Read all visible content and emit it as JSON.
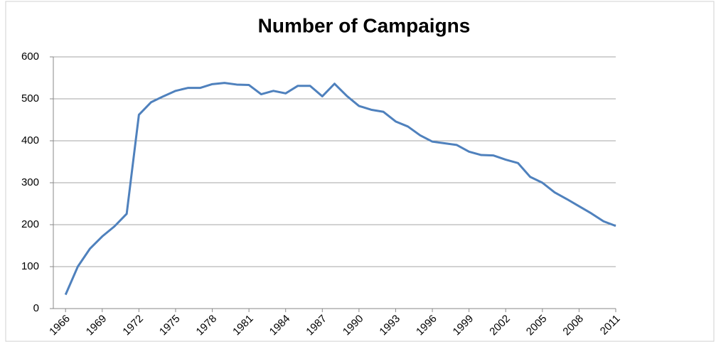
{
  "chart_data": {
    "type": "line",
    "title": "Number of Campaigns",
    "x": [
      1966,
      1967,
      1968,
      1969,
      1970,
      1971,
      1972,
      1973,
      1974,
      1975,
      1976,
      1977,
      1978,
      1979,
      1980,
      1981,
      1982,
      1983,
      1984,
      1985,
      1986,
      1987,
      1988,
      1989,
      1990,
      1991,
      1992,
      1993,
      1994,
      1995,
      1996,
      1997,
      1998,
      1999,
      2000,
      2001,
      2002,
      2003,
      2004,
      2005,
      2006,
      2007,
      2008,
      2009,
      2010,
      2011
    ],
    "series": [
      {
        "name": "Number of Campaigns",
        "color": "#4f81bd",
        "values": [
          33,
          100,
          143,
          172,
          196,
          226,
          462,
          492,
          506,
          519,
          526,
          526,
          535,
          538,
          534,
          533,
          511,
          519,
          513,
          531,
          531,
          506,
          536,
          507,
          483,
          474,
          469,
          446,
          434,
          413,
          398,
          394,
          390,
          374,
          366,
          365,
          355,
          347,
          314,
          300,
          277,
          261,
          244,
          227,
          208,
          197
        ]
      }
    ],
    "xlim": [
      1965,
      2011
    ],
    "xticks": [
      1966,
      1969,
      1972,
      1975,
      1978,
      1981,
      1984,
      1987,
      1990,
      1993,
      1996,
      1999,
      2002,
      2005,
      2008,
      2011
    ],
    "ylim": [
      0,
      600
    ],
    "yticks": [
      0,
      100,
      200,
      300,
      400,
      500,
      600
    ],
    "grid": true
  }
}
